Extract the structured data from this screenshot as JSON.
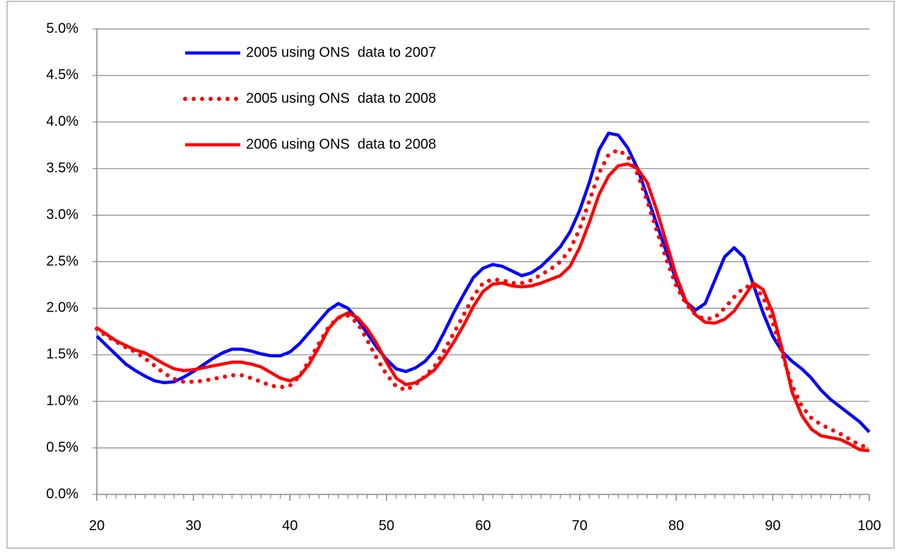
{
  "chart_data": {
    "type": "line",
    "x": [
      20,
      21,
      22,
      23,
      24,
      25,
      26,
      27,
      28,
      29,
      30,
      31,
      32,
      33,
      34,
      35,
      36,
      37,
      38,
      39,
      40,
      41,
      42,
      43,
      44,
      45,
      46,
      47,
      48,
      49,
      50,
      51,
      52,
      53,
      54,
      55,
      56,
      57,
      58,
      59,
      60,
      61,
      62,
      63,
      64,
      65,
      66,
      67,
      68,
      69,
      70,
      71,
      72,
      73,
      74,
      75,
      76,
      77,
      78,
      79,
      80,
      81,
      82,
      83,
      84,
      85,
      86,
      87,
      88,
      89,
      90,
      91,
      92,
      93,
      94,
      95,
      96,
      97,
      98,
      99,
      100
    ],
    "series": [
      {
        "name": "2005 using ONS  data to 2007",
        "color": "#0000ff",
        "line_style": "solid",
        "values": [
          1.7,
          1.6,
          1.5,
          1.4,
          1.33,
          1.27,
          1.22,
          1.2,
          1.21,
          1.26,
          1.32,
          1.39,
          1.46,
          1.52,
          1.56,
          1.56,
          1.54,
          1.51,
          1.49,
          1.49,
          1.53,
          1.62,
          1.74,
          1.86,
          1.98,
          2.05,
          2.0,
          1.88,
          1.73,
          1.58,
          1.45,
          1.35,
          1.32,
          1.36,
          1.43,
          1.55,
          1.75,
          1.96,
          2.15,
          2.33,
          2.43,
          2.47,
          2.45,
          2.4,
          2.35,
          2.38,
          2.45,
          2.55,
          2.66,
          2.82,
          3.05,
          3.35,
          3.7,
          3.88,
          3.86,
          3.72,
          3.5,
          3.2,
          2.9,
          2.6,
          2.3,
          2.07,
          1.98,
          2.05,
          2.3,
          2.55,
          2.65,
          2.55,
          2.25,
          1.95,
          1.7,
          1.53,
          1.43,
          1.35,
          1.25,
          1.12,
          1.02,
          0.94,
          0.86,
          0.78,
          0.67
        ]
      },
      {
        "name": "2005 using ONS  data to 2008",
        "color": "#ff0000",
        "line_style": "dotted",
        "values": [
          1.78,
          1.7,
          1.64,
          1.58,
          1.53,
          1.46,
          1.38,
          1.3,
          1.24,
          1.21,
          1.21,
          1.22,
          1.24,
          1.26,
          1.28,
          1.28,
          1.25,
          1.21,
          1.17,
          1.15,
          1.17,
          1.27,
          1.44,
          1.62,
          1.8,
          1.9,
          1.92,
          1.84,
          1.66,
          1.46,
          1.29,
          1.16,
          1.12,
          1.18,
          1.27,
          1.38,
          1.55,
          1.74,
          1.93,
          2.13,
          2.27,
          2.31,
          2.3,
          2.27,
          2.27,
          2.3,
          2.36,
          2.42,
          2.5,
          2.63,
          2.85,
          3.15,
          3.45,
          3.65,
          3.7,
          3.63,
          3.44,
          3.15,
          2.83,
          2.52,
          2.24,
          2.05,
          1.93,
          1.88,
          1.9,
          2.0,
          2.12,
          2.22,
          2.25,
          2.12,
          1.85,
          1.5,
          1.17,
          0.95,
          0.82,
          0.75,
          0.7,
          0.65,
          0.59,
          0.53,
          0.5
        ]
      },
      {
        "name": "2006 using ONS  data to 2008",
        "color": "#ff0000",
        "line_style": "solid",
        "values": [
          1.79,
          1.72,
          1.65,
          1.6,
          1.55,
          1.52,
          1.46,
          1.4,
          1.35,
          1.33,
          1.34,
          1.36,
          1.38,
          1.4,
          1.42,
          1.42,
          1.4,
          1.37,
          1.31,
          1.25,
          1.22,
          1.27,
          1.4,
          1.58,
          1.78,
          1.9,
          1.95,
          1.9,
          1.78,
          1.62,
          1.42,
          1.25,
          1.18,
          1.2,
          1.26,
          1.34,
          1.48,
          1.64,
          1.82,
          2.02,
          2.18,
          2.26,
          2.27,
          2.24,
          2.23,
          2.24,
          2.27,
          2.31,
          2.35,
          2.45,
          2.65,
          2.92,
          3.22,
          3.42,
          3.53,
          3.55,
          3.5,
          3.35,
          3.05,
          2.7,
          2.35,
          2.08,
          1.93,
          1.85,
          1.84,
          1.88,
          1.97,
          2.12,
          2.27,
          2.2,
          1.95,
          1.55,
          1.1,
          0.85,
          0.7,
          0.63,
          0.61,
          0.59,
          0.54,
          0.48,
          0.47
        ]
      }
    ],
    "xlim": [
      20,
      100
    ],
    "xticks": [
      20,
      30,
      40,
      50,
      60,
      70,
      80,
      90,
      100
    ],
    "ylim": [
      0,
      5
    ],
    "yticks": [
      {
        "value": 0,
        "label": "0.0%"
      },
      {
        "value": 0.5,
        "label": "0.5%"
      },
      {
        "value": 1,
        "label": "1.0%"
      },
      {
        "value": 1.5,
        "label": "1.5%"
      },
      {
        "value": 2,
        "label": "2.0%"
      },
      {
        "value": 2.5,
        "label": "2.5%"
      },
      {
        "value": 3,
        "label": "3.0%"
      },
      {
        "value": 3.5,
        "label": "3.5%"
      },
      {
        "value": 4,
        "label": "4.0%"
      },
      {
        "value": 4.5,
        "label": "4.5%"
      },
      {
        "value": 5,
        "label": "5.0%"
      }
    ],
    "grid": true,
    "legend": "top-left"
  }
}
